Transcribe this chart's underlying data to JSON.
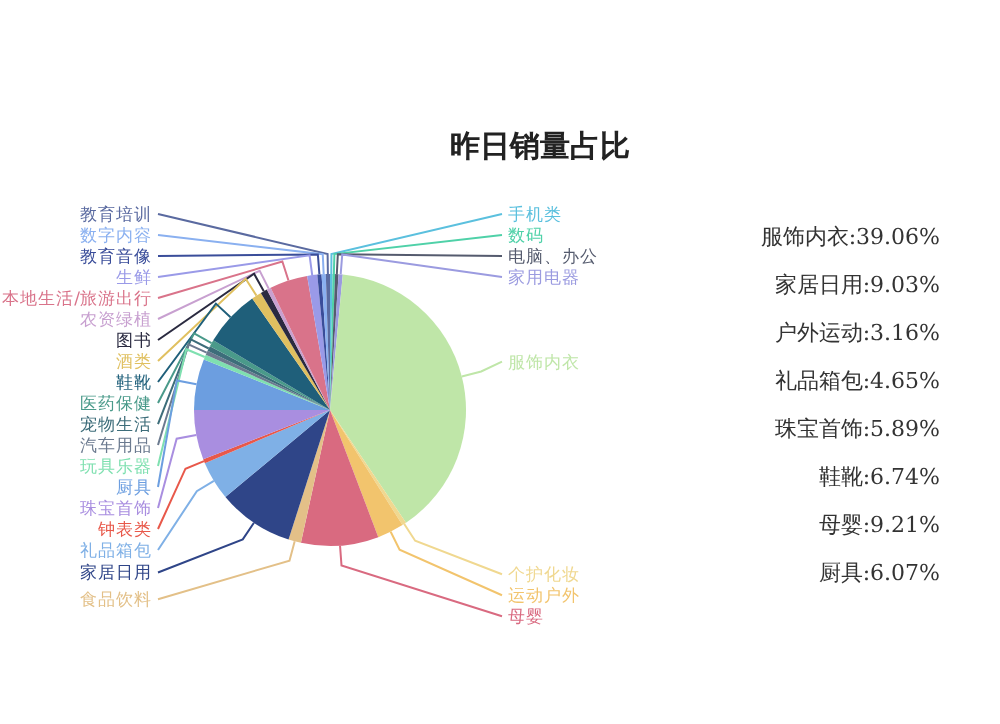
{
  "chart_data": {
    "type": "pie",
    "title": "昨日销量占比",
    "categories": [
      "手机类",
      "数码",
      "电脑、办公",
      "家用电器",
      "服饰内衣",
      "个护化妆",
      "运动户外",
      "母婴",
      "食品饮料",
      "家居日用",
      "礼品箱包",
      "钟表类",
      "珠宝首饰",
      "厨具",
      "玩具乐器",
      "汽车用品",
      "宠物生活",
      "医药保健",
      "鞋靴",
      "酒类",
      "图书",
      "农资绿植",
      "本地生活/旅游出行",
      "生鲜",
      "教育音像",
      "数字内容",
      "教育培训"
    ],
    "values": [
      0.3,
      0.3,
      0.4,
      0.5,
      39.06,
      0.5,
      3.16,
      9.21,
      1.5,
      9.03,
      4.65,
      0.5,
      5.89,
      6.07,
      0.6,
      0.5,
      0.6,
      0.8,
      6.74,
      1.2,
      0.8,
      0.5,
      4.5,
      1.2,
      0.5,
      0.5,
      0.49
    ],
    "colors": [
      "#5bc0de",
      "#4fd1a8",
      "#555b6e",
      "#9b9be0",
      "#bfe6a8",
      "#f0d890",
      "#f2c46d",
      "#d96a80",
      "#e3c088",
      "#2f4588",
      "#7fb0e6",
      "#e8584a",
      "#a98ee0",
      "#6c9ee0",
      "#7fe0b0",
      "#6b7a8f",
      "#3d6d7a",
      "#4a9a8a",
      "#1f5f7a",
      "#e0c060",
      "#2a2a40",
      "#c8a0d0",
      "#d9738a",
      "#9a9ae8",
      "#3a4d9a",
      "#8ab0f0",
      "#5a6aa0"
    ],
    "annotations": [
      "服饰内衣:39.06%",
      "家居日用:9.03%",
      "户外运动:3.16%",
      "礼品箱包:4.65%",
      "珠宝首饰:5.89%",
      "鞋靴:6.74%",
      "母婴:9.21%",
      "厨具:6.07%"
    ]
  }
}
